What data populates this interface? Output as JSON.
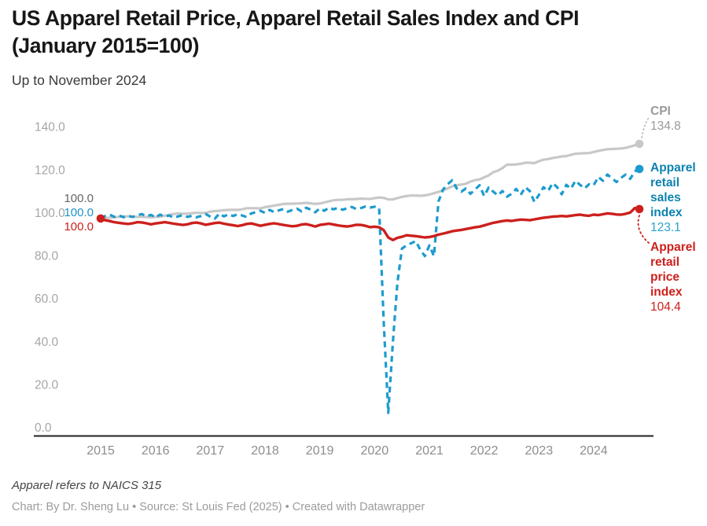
{
  "header": {
    "title_line1": "US Apparel Retail Price, Apparel Retail Sales Index and CPI",
    "title_line2": "(January 2015=100)",
    "subtitle": "Up to November 2024"
  },
  "footer": {
    "note": "Apparel refers to NAICS 315",
    "credit": "Chart: By Dr. Sheng Lu • Source: St Louis Fed (2025) • Created with Datawrapper"
  },
  "chart_data": {
    "type": "line",
    "title": "US Apparel Retail Price, Apparel Retail Sales Index and CPI (January 2015=100)",
    "subtitle": "Up to November 2024",
    "x": {
      "start": "2015-01",
      "end": "2024-11",
      "frequency": "monthly"
    },
    "x_tick_labels": [
      "2015",
      "2016",
      "2017",
      "2018",
      "2019",
      "2020",
      "2021",
      "2022",
      "2023",
      "2024"
    ],
    "y_tick_labels": [
      "0.0",
      "20.0",
      "40.0",
      "60.0",
      "80.0",
      "100.0",
      "120.0",
      "140.0"
    ],
    "ylim": [
      0,
      145
    ],
    "grid": false,
    "legend_position": "right-annotations",
    "axis_text_color_y": "#a6a6a6",
    "axis_text_color_x": "#8d8d8d",
    "left_labels": [
      {
        "series": "cpi",
        "text": "100.0",
        "color": "#666666"
      },
      {
        "series": "sales",
        "text": "100.0",
        "color": "#1b93c4"
      },
      {
        "series": "price",
        "text": "100.0",
        "color": "#cc201d"
      }
    ],
    "right_labels": [
      {
        "series": "cpi",
        "lines": [
          "CPI"
        ],
        "value": "134.8"
      },
      {
        "series": "sales",
        "lines": [
          "Apparel",
          "retail",
          "sales",
          "index"
        ],
        "value": "123.1"
      },
      {
        "series": "price",
        "lines": [
          "Apparel",
          "retail",
          "price",
          "index"
        ],
        "value": "104.4"
      }
    ],
    "series": [
      {
        "id": "cpi",
        "name": "CPI",
        "color": "#c8c8c8",
        "label_color": "#9a9a9a",
        "value_color": "#9a9a9a",
        "dashed": false,
        "width": 3.2,
        "end_value": 134.8,
        "values": [
          100.0,
          100.2,
          100.4,
          100.6,
          100.8,
          101.0,
          101.0,
          100.9,
          100.8,
          100.8,
          100.7,
          100.6,
          100.8,
          100.9,
          101.3,
          101.7,
          102.1,
          102.4,
          102.2,
          102.3,
          102.5,
          102.7,
          102.6,
          102.6,
          103.2,
          103.5,
          103.6,
          103.9,
          104.0,
          104.1,
          104.0,
          104.3,
          104.8,
          104.8,
          104.8,
          104.7,
          105.3,
          105.7,
          106.0,
          106.4,
          106.8,
          106.9,
          106.9,
          107.0,
          107.1,
          107.3,
          107.1,
          106.8,
          107.0,
          107.5,
          108.0,
          108.5,
          108.7,
          108.7,
          109.0,
          109.0,
          109.1,
          109.3,
          109.2,
          109.1,
          109.5,
          109.8,
          109.6,
          108.9,
          108.9,
          109.5,
          110.1,
          110.5,
          110.7,
          110.7,
          110.6,
          110.8,
          111.2,
          111.8,
          112.4,
          113.2,
          114.0,
          115.0,
          115.5,
          115.8,
          116.2,
          117.2,
          117.9,
          118.2,
          119.2,
          120.1,
          121.6,
          122.3,
          123.5,
          125.1,
          125.1,
          125.2,
          125.5,
          126.0,
          126.0,
          125.8,
          126.7,
          127.4,
          127.7,
          128.2,
          128.5,
          128.9,
          129.1,
          129.7,
          130.2,
          130.3,
          130.4,
          130.5,
          131.0,
          131.5,
          131.9,
          132.3,
          132.4,
          132.5,
          132.6,
          132.9,
          133.5,
          134.1,
          134.8
        ]
      },
      {
        "id": "sales",
        "name": "Apparel retail sales index",
        "color": "#1d9bce",
        "label_color": "#0d82af",
        "value_color": "#2aa2cd",
        "dashed": true,
        "width": 3.2,
        "end_value": 123.1,
        "values": [
          100.0,
          101.2,
          101.8,
          100.8,
          101.5,
          100.6,
          101.3,
          100.7,
          101.5,
          102.1,
          101.0,
          101.7,
          100.5,
          101.8,
          100.9,
          101.4,
          100.4,
          101.0,
          101.6,
          100.8,
          101.3,
          100.6,
          101.2,
          102.1,
          100.9,
          99.9,
          102.3,
          101.0,
          102.0,
          101.2,
          102.0,
          101.4,
          100.7,
          102.4,
          103.0,
          103.6,
          102.6,
          104.0,
          103.0,
          103.8,
          104.4,
          103.2,
          104.0,
          104.6,
          103.3,
          105.0,
          104.2,
          102.9,
          104.7,
          103.6,
          105.1,
          104.3,
          105.0,
          104.1,
          104.8,
          105.4,
          104.4,
          104.9,
          105.6,
          105.1,
          105.5,
          105.0,
          52.0,
          9.5,
          42.0,
          70.0,
          86.0,
          87.5,
          88.5,
          89.5,
          85.5,
          82.5,
          87.5,
          82.5,
          108.0,
          113.5,
          116.0,
          117.8,
          114.0,
          112.5,
          114.0,
          111.5,
          113.5,
          115.5,
          110.5,
          114.5,
          112.5,
          110.8,
          112.8,
          110.2,
          111.5,
          113.8,
          111.0,
          114.6,
          112.8,
          107.7,
          111.0,
          114.6,
          112.8,
          116.5,
          114.6,
          111.3,
          115.7,
          113.9,
          117.6,
          115.7,
          114.0,
          116.0,
          115.5,
          119.4,
          117.6,
          120.5,
          118.7,
          117.0,
          119.0,
          120.5,
          118.5,
          122.0,
          123.1
        ]
      },
      {
        "id": "price",
        "name": "Apparel retail price index",
        "color": "#cc201d",
        "label_color": "#cc201d",
        "value_color": "#cc201d",
        "dashed": false,
        "width": 3.4,
        "end_value": 104.4,
        "values": [
          100.0,
          99.2,
          98.8,
          98.3,
          98.0,
          97.7,
          97.5,
          97.8,
          98.3,
          98.2,
          97.8,
          97.3,
          97.7,
          98.0,
          98.3,
          98.0,
          97.6,
          97.3,
          97.0,
          97.3,
          97.9,
          98.1,
          97.7,
          97.1,
          97.5,
          97.9,
          98.1,
          97.6,
          97.2,
          96.9,
          96.5,
          96.9,
          97.5,
          97.7,
          97.2,
          96.6,
          97.1,
          97.5,
          97.8,
          97.4,
          97.0,
          96.7,
          96.4,
          96.6,
          97.2,
          97.4,
          96.9,
          96.3,
          97.0,
          97.3,
          97.6,
          97.2,
          96.8,
          96.5,
          96.3,
          96.6,
          97.1,
          97.0,
          96.6,
          96.0,
          96.2,
          95.9,
          94.6,
          91.2,
          90.0,
          91.0,
          91.5,
          92.2,
          92.0,
          91.8,
          91.5,
          91.2,
          91.4,
          91.8,
          92.5,
          93.0,
          93.5,
          94.1,
          94.4,
          94.7,
          95.1,
          95.5,
          95.9,
          96.2,
          96.8,
          97.4,
          98.0,
          98.4,
          98.8,
          99.1,
          98.9,
          99.2,
          99.5,
          99.4,
          99.2,
          99.6,
          100.0,
          100.4,
          100.6,
          100.9,
          101.0,
          101.2,
          101.0,
          101.3,
          101.6,
          101.8,
          101.5,
          101.3,
          101.8,
          101.6,
          102.0,
          102.4,
          102.2,
          101.9,
          101.8,
          102.2,
          102.8,
          104.9,
          104.4
        ]
      }
    ]
  }
}
